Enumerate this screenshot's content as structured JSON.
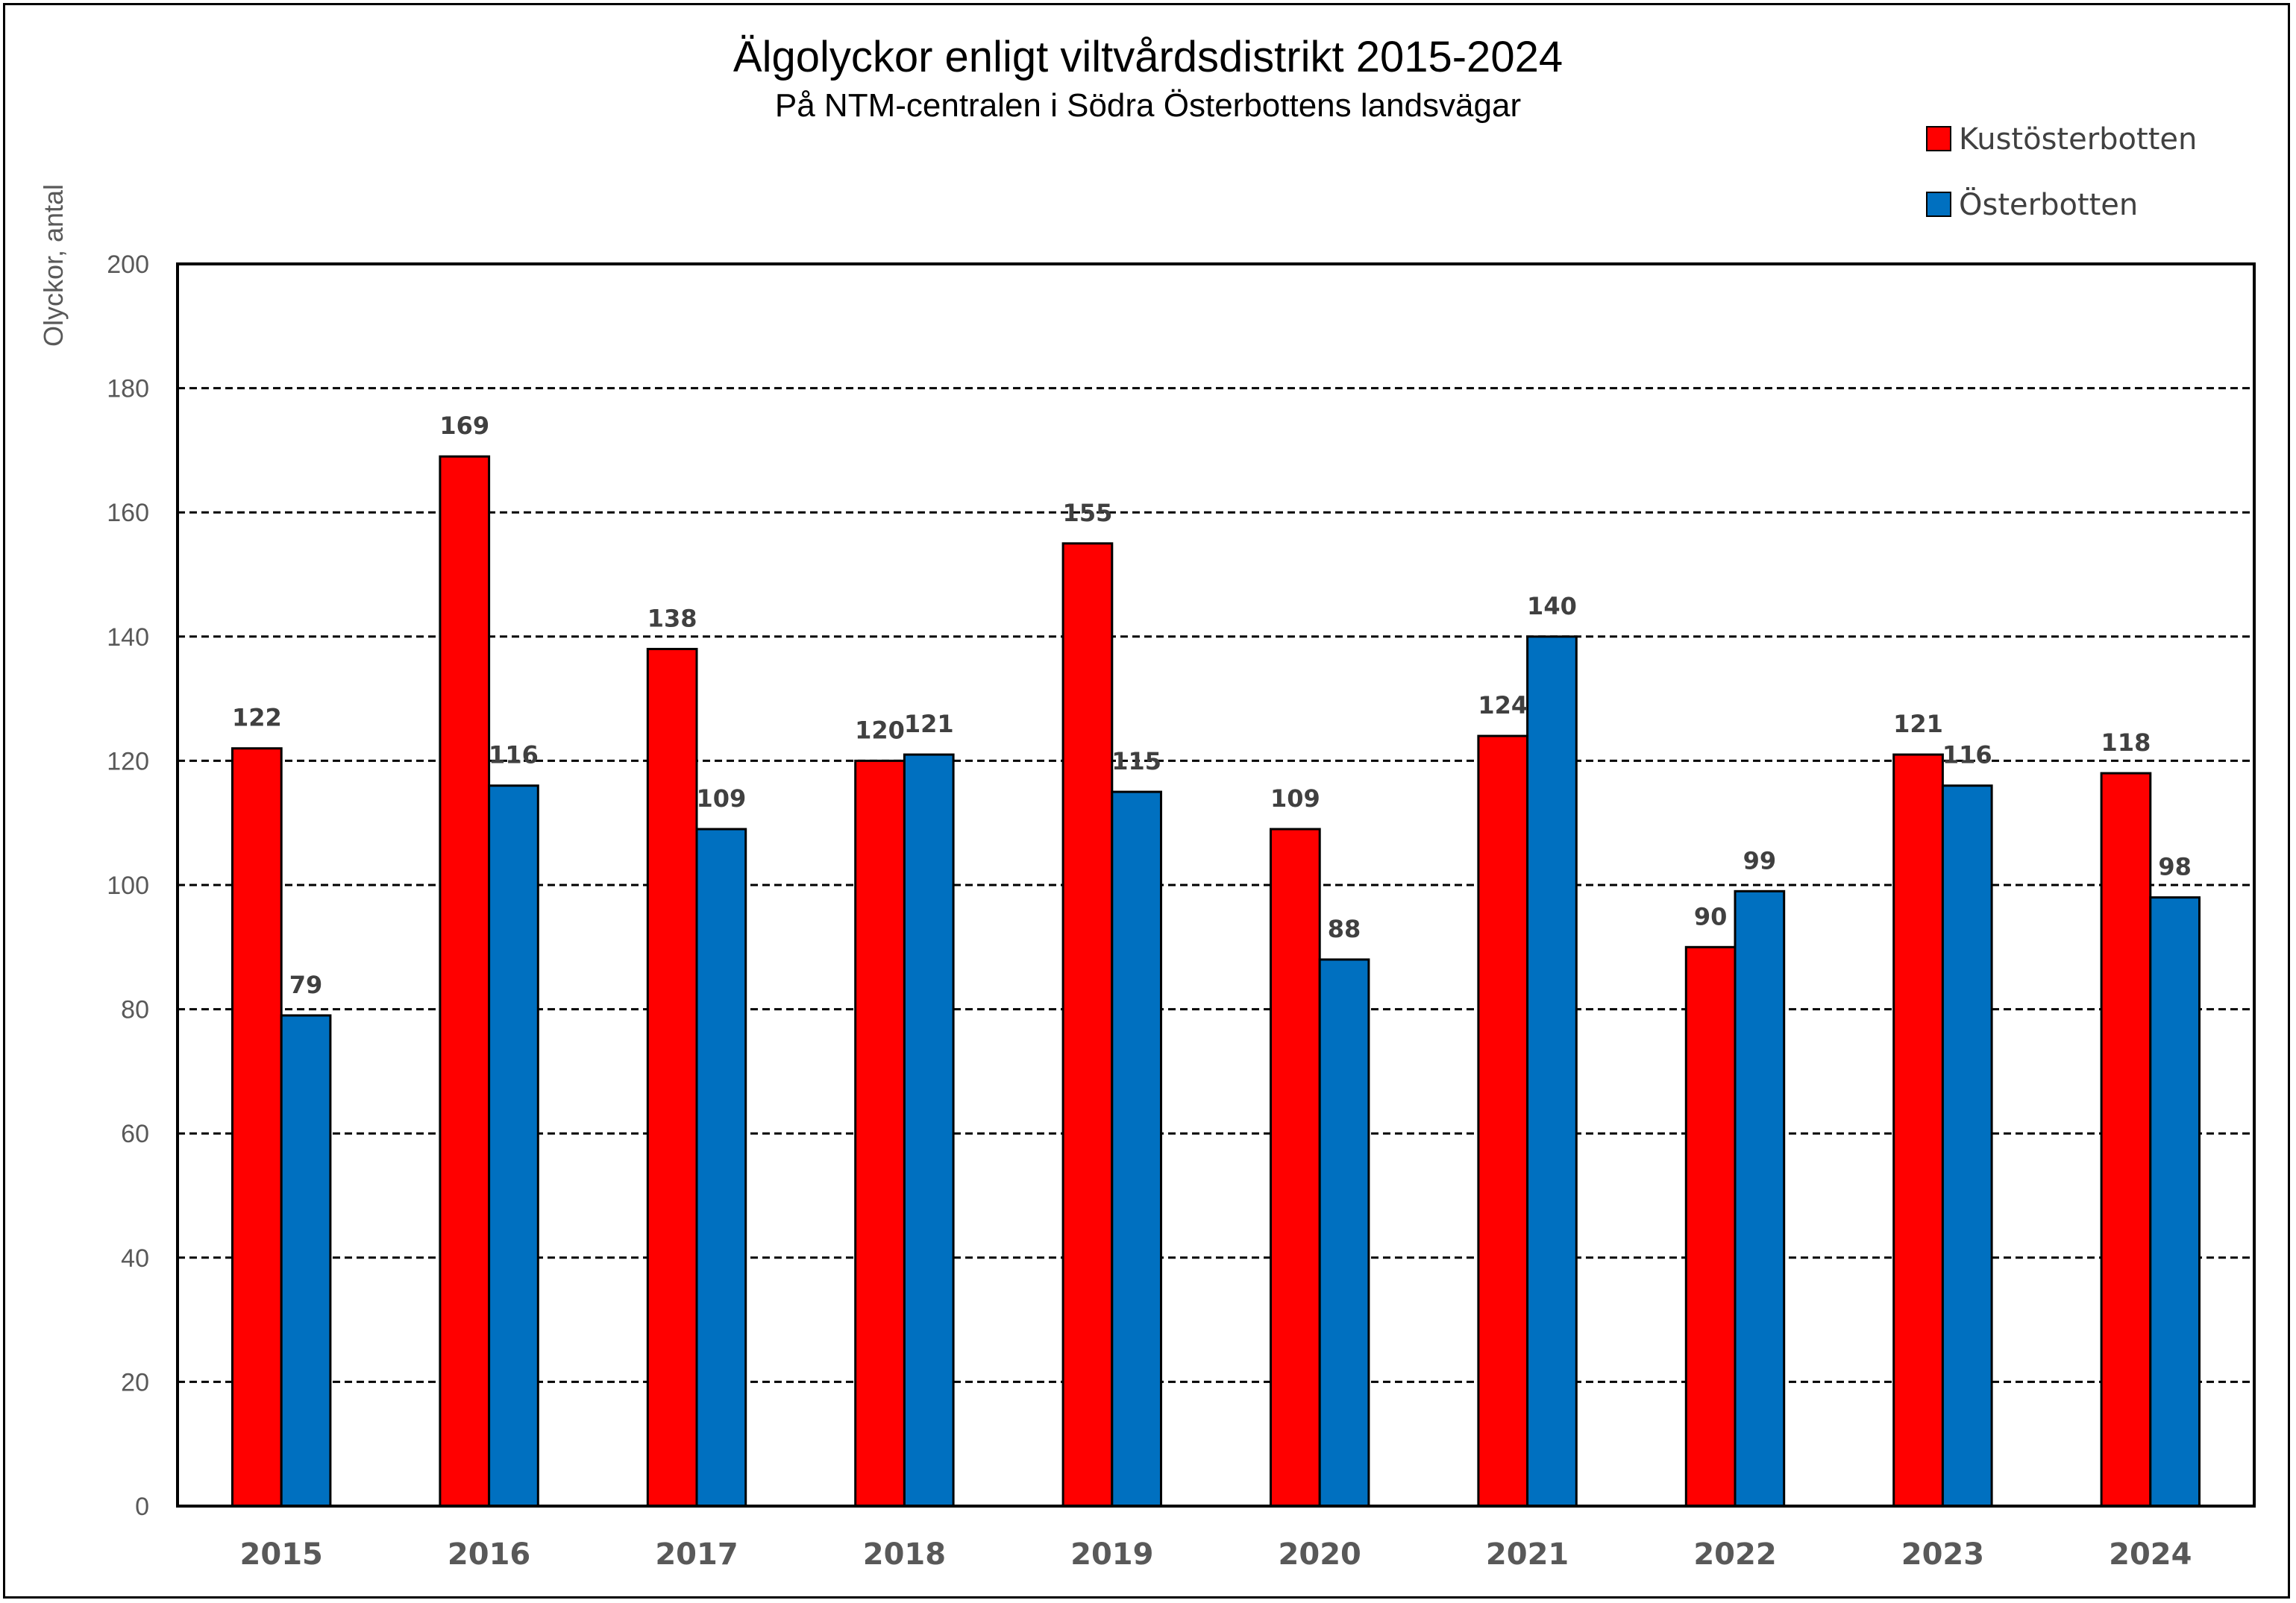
{
  "chart_data": {
    "type": "bar",
    "title": "Älgolyckor enligt viltvårdsdistrikt 2015-2024",
    "subtitle": "På NTM-centralen i Södra Österbottens landsvägar",
    "ylabel": "Olyckor, antal",
    "xlabel": "",
    "ylim": [
      0,
      200
    ],
    "yticks": [
      0,
      20,
      40,
      60,
      80,
      100,
      120,
      140,
      160,
      180,
      200
    ],
    "grid": "horizontal dashed",
    "legend_position": "top-right",
    "categories": [
      "2015",
      "2016",
      "2017",
      "2018",
      "2019",
      "2020",
      "2021",
      "2022",
      "2023",
      "2024"
    ],
    "series": [
      {
        "name": "Kustösterbotten",
        "color": "#FF0000",
        "values": [
          122,
          169,
          138,
          120,
          155,
          109,
          124,
          90,
          121,
          118
        ]
      },
      {
        "name": "Österbotten",
        "color": "#0070C0",
        "values": [
          79,
          116,
          109,
          121,
          115,
          88,
          140,
          99,
          116,
          98
        ]
      }
    ]
  }
}
